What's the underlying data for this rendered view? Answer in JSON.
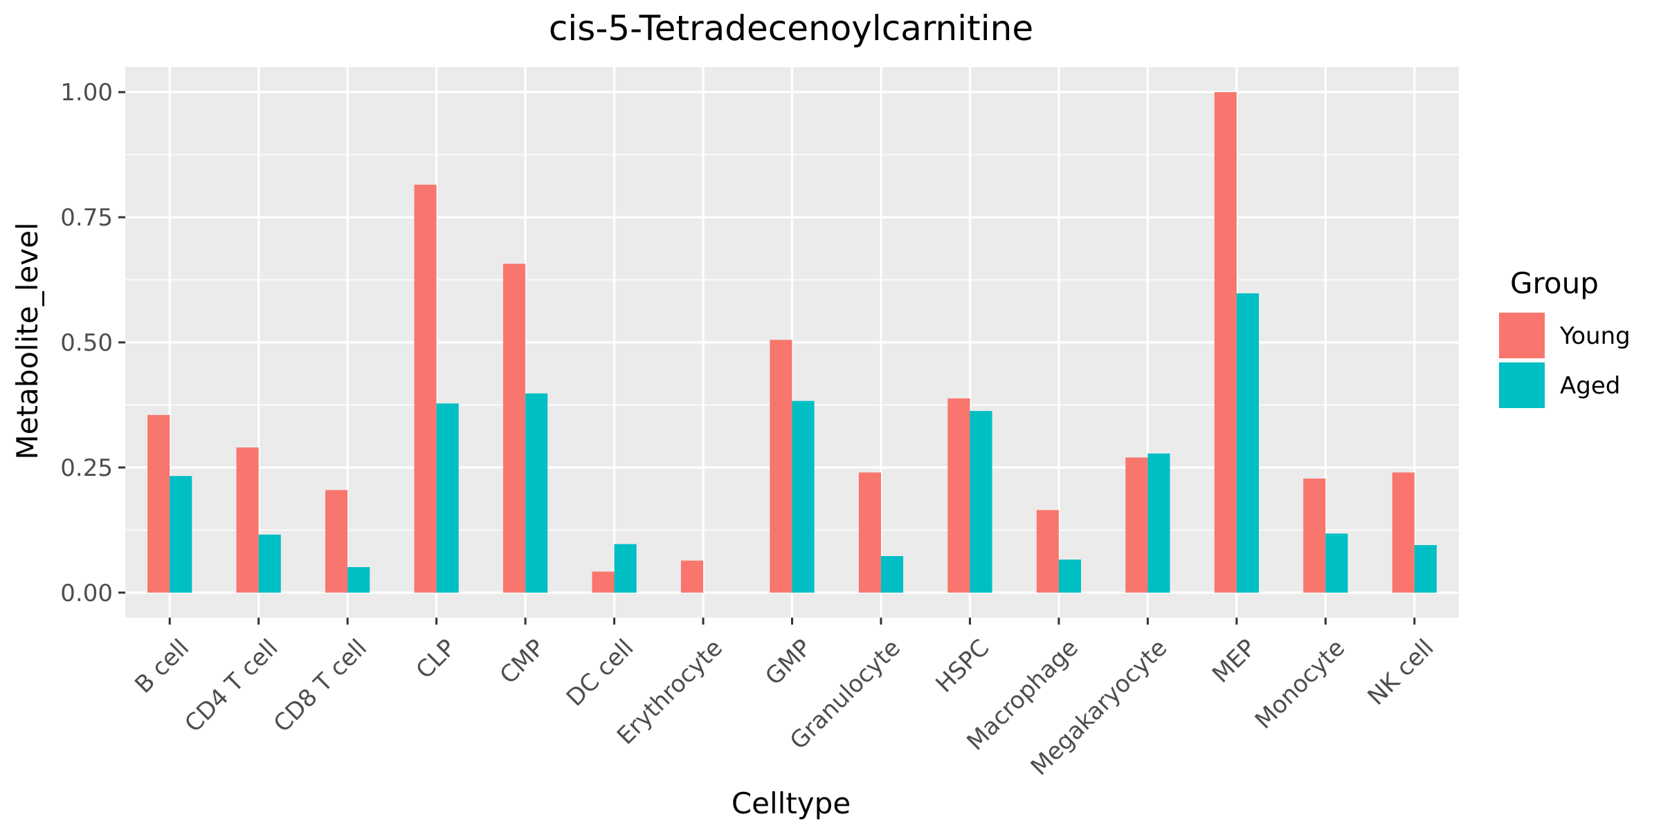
{
  "chart_data": {
    "type": "bar",
    "title": "cis-5-Tetradecenoylcarnitine",
    "xlabel": "Celltype",
    "ylabel": "Metabolite_level",
    "ylim": [
      -0.05,
      1.05
    ],
    "yticks": [
      0,
      0.25,
      0.5,
      0.75,
      1.0
    ],
    "ytick_labels": [
      "0.00",
      "0.25",
      "0.50",
      "0.75",
      "1.00"
    ],
    "grid": true,
    "legend": {
      "title": "Group",
      "position": "right"
    },
    "categories": [
      "B cell",
      "CD4 T cell",
      "CD8 T cell",
      "CLP",
      "CMP",
      "DC cell",
      "Erythrocyte",
      "GMP",
      "Granulocyte",
      "HSPC",
      "Macrophage",
      "Megakaryocyte",
      "MEP",
      "Monocyte",
      "NK cell"
    ],
    "series": [
      {
        "name": "Young",
        "color": "#F8766D",
        "values": [
          0.355,
          0.29,
          0.205,
          0.815,
          0.657,
          0.042,
          0.064,
          0.505,
          0.24,
          0.388,
          0.165,
          0.27,
          1.0,
          0.228,
          0.24
        ]
      },
      {
        "name": "Aged",
        "color": "#00BFC4",
        "values": [
          0.233,
          0.116,
          0.051,
          0.378,
          0.398,
          0.097,
          0.0,
          0.383,
          0.073,
          0.363,
          0.066,
          0.278,
          0.598,
          0.118,
          0.095
        ]
      }
    ]
  }
}
